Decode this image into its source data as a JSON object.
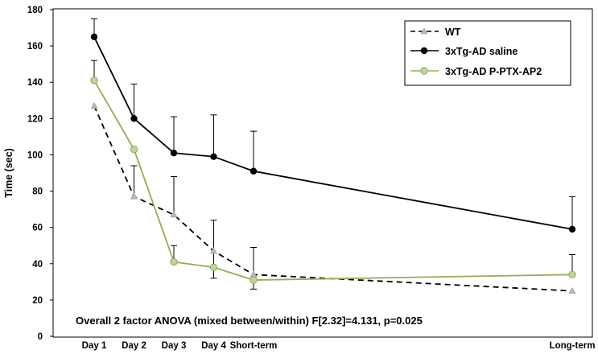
{
  "chart_data": {
    "type": "line",
    "title": "",
    "xlabel": "",
    "ylabel": "Time (sec)",
    "ylim": [
      0,
      180
    ],
    "yticks": [
      0,
      20,
      40,
      60,
      80,
      100,
      120,
      140,
      160,
      180
    ],
    "categories": [
      "Day 1",
      "Day 2",
      "Day 3",
      "Day 4",
      "Short-term",
      "Long-term"
    ],
    "x_positions": [
      1,
      2,
      3,
      4,
      5,
      13
    ],
    "grid": false,
    "legend_position": "top-right",
    "series": [
      {
        "name": "WT",
        "values": [
          127,
          77,
          67,
          47,
          34,
          25
        ],
        "error_up": [
          0,
          17,
          21,
          17,
          15,
          0
        ],
        "error_down": [
          0,
          0,
          0,
          15,
          8,
          0
        ],
        "color": "#000000",
        "line_style": "dashed",
        "marker": "triangle",
        "marker_color": "#b8b8b8"
      },
      {
        "name": "3xTg-AD saline",
        "values": [
          165,
          120,
          101,
          99,
          91,
          59
        ],
        "error_up": [
          10,
          19,
          20,
          23,
          22,
          18
        ],
        "error_down": [
          0,
          0,
          0,
          0,
          0,
          0
        ],
        "color": "#000000",
        "line_style": "solid",
        "marker": "circle",
        "marker_color": "#000000"
      },
      {
        "name": "3xTg-AD P-PTX-AP2",
        "values": [
          141,
          103,
          41,
          38,
          31,
          34
        ],
        "error_up": [
          11,
          0,
          9,
          0,
          0,
          11
        ],
        "error_down": [
          0,
          0,
          0,
          0,
          0,
          0
        ],
        "color": "#8fae5a",
        "line_style": "solid",
        "marker": "circle",
        "marker_color": "#c5cfa0"
      }
    ],
    "annotations": [
      "Overall 2 factor ANOVA (mixed between/within) F[2.32]=4.131, p=0.025"
    ]
  }
}
